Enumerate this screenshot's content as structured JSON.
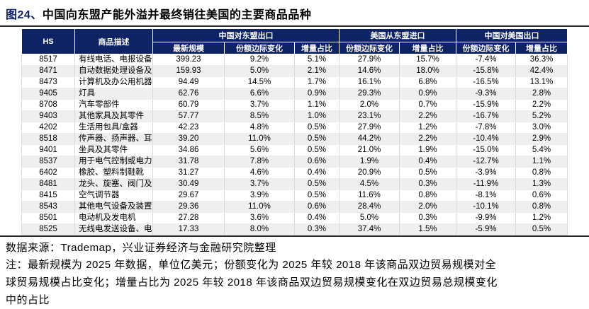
{
  "figure": {
    "title_prefix": "图24、",
    "title": "中国向东盟产能外溢并最终销往美国的主要商品品种",
    "source": "数据来源：Trademap，兴业证券经济与金融研究院整理",
    "note_lines": [
      "注：最新规模为 2025 年数据，单位亿美元；份额变化为 2025 年较 2018 年该商品双边贸易规模对全",
      "球贸易规模占比变化；增量占比为 2025 年较 2018 年该商品双边贸易规模变化在双边贸易总规模变化",
      "中的占比"
    ]
  },
  "colors": {
    "header_bg": "#0e2363",
    "title_accent": "#0e2363",
    "alt_row_bg": "#efefef",
    "rule": "#262626"
  },
  "chart_data": {
    "type": "table",
    "title": "图24、中国向东盟产能外溢并最终销往美国的主要商品品种",
    "column_groups": [
      {
        "label": "中国对东盟出口",
        "span": 3
      },
      {
        "label": "美国从东盟进口",
        "span": 2
      },
      {
        "label": "中国对美国出口",
        "span": 2
      }
    ],
    "columns": [
      "HS",
      "商品描述",
      "最新规模",
      "份额边际变化",
      "增量占比",
      "份额边际变化",
      "增量占比",
      "份额边际变化",
      "增量占比"
    ],
    "rows": [
      [
        "8517",
        "有线电话、电报设备",
        "399.23",
        "9.2%",
        "5.1%",
        "27.9%",
        "15.7%",
        "-7.4%",
        "36.3%"
      ],
      [
        "8471",
        "自动数据处理设备及其部件",
        "159.93",
        "5.0%",
        "2.1%",
        "14.6%",
        "18.0%",
        "-15.8%",
        "42.4%"
      ],
      [
        "8473",
        "计算机及办公用机器零件",
        "94.49",
        "14.5%",
        "1.7%",
        "16.1%",
        "6.8%",
        "-16.5%",
        "13.1%"
      ],
      [
        "9405",
        "灯具",
        "62.76",
        "6.6%",
        "0.9%",
        "29.3%",
        "0.9%",
        "-9.3%",
        "2.8%"
      ],
      [
        "8708",
        "汽车零部件",
        "60.79",
        "3.7%",
        "1.1%",
        "2.0%",
        "0.7%",
        "-15.9%",
        "2.2%"
      ],
      [
        "9403",
        "其他家具及其零件",
        "57.77",
        "8.5%",
        "1.0%",
        "23.1%",
        "2.2%",
        "-16.7%",
        "5.2%"
      ],
      [
        "4202",
        "生活用包具/盒器",
        "42.23",
        "4.8%",
        "0.5%",
        "27.9%",
        "1.2%",
        "-7.8%",
        "3.0%"
      ],
      [
        "8518",
        "传声器、扬声器、耳机等",
        "39.20",
        "11.0%",
        "0.5%",
        "44.2%",
        "2.2%",
        "-10.4%",
        "2.9%"
      ],
      [
        "9401",
        "坐具及其零件",
        "34.86",
        "5.6%",
        "0.5%",
        "21.0%",
        "1.9%",
        "-15.0%",
        "5.4%"
      ],
      [
        "8537",
        "用于电气控制或电力分配的基座",
        "31.78",
        "7.8%",
        "0.6%",
        "1.9%",
        "0.4%",
        "-12.7%",
        "1.1%"
      ],
      [
        "6402",
        "橡胶、塑料制鞋靴",
        "31.27",
        "4.6%",
        "0.4%",
        "20.9%",
        "0.5%",
        "-3.9%",
        "0.8%"
      ],
      [
        "8481",
        "龙头、旋塞、阀门及类似装置",
        "30.49",
        "3.7%",
        "0.5%",
        "4.5%",
        "0.3%",
        "-11.9%",
        "1.3%"
      ],
      [
        "8415",
        "空气调节器",
        "29.67",
        "3.9%",
        "0.5%",
        "11.6%",
        "0.8%",
        "-8.1%",
        "0.6%"
      ],
      [
        "8543",
        "其他电气设备及装置",
        "29.36",
        "11.0%",
        "0.6%",
        "28.4%",
        "2.0%",
        "-10.1%",
        "0.8%"
      ],
      [
        "8501",
        "电动机及发电机",
        "27.28",
        "3.6%",
        "0.4%",
        "5.0%",
        "0.3%",
        "-9.9%",
        "1.2%"
      ],
      [
        "8525",
        "无线电发送设备、电视摄像机",
        "17.33",
        "8.0%",
        "0.3%",
        "37.4%",
        "1.5%",
        "-5.9%",
        "0.5%"
      ]
    ]
  }
}
